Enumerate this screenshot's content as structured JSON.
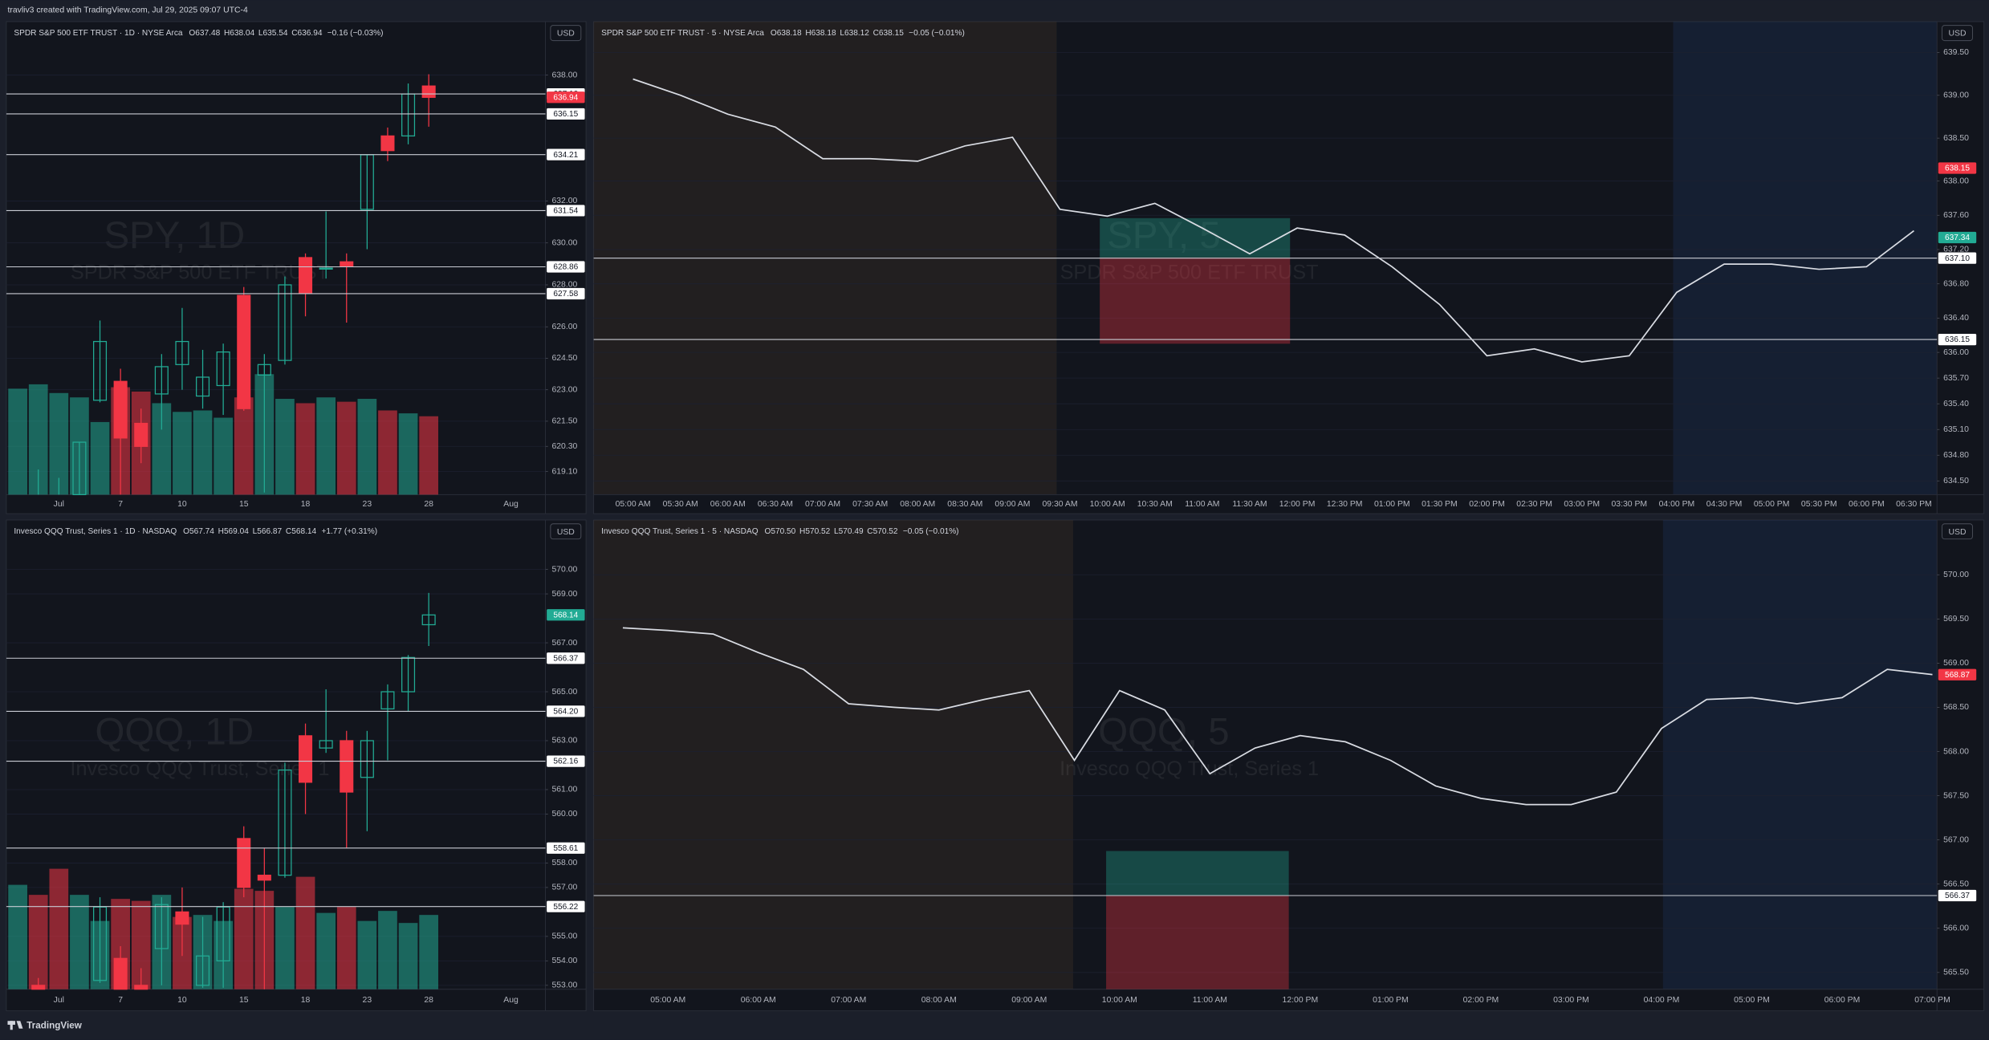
{
  "header": {
    "text": "travliv3 created with TradingView.com, Jul 29, 2025 09:07 UTC-4"
  },
  "footer": {
    "brand": "TradingView"
  },
  "chart_data": [
    {
      "type": "candlestick",
      "title": "SPDR S&P 500 ETF TRUST · 1D · NYSE Arca",
      "ohlc_legend": [
        {
          "key": "O",
          "value": "637.48"
        },
        {
          "key": "H",
          "value": "638.04"
        },
        {
          "key": "L",
          "value": "635.54"
        },
        {
          "key": "C",
          "value": "636.94"
        }
      ],
      "change": "−0.16 (−0.03%)",
      "legend_color": "#f23645",
      "watermark": "SPY, 1D",
      "watermark_subtitle": "SPDR S&P 500 ETF TRUST",
      "currency": "USD",
      "categories": [
        null,
        null,
        "Jul",
        null,
        null,
        "7",
        null,
        null,
        "10",
        null,
        null,
        "15",
        null,
        null,
        "18",
        null,
        null,
        "23",
        null,
        null,
        "28",
        null,
        null,
        null,
        "Aug"
      ],
      "open": [
        613.0,
        617.4,
        616.4,
        617.2,
        622.5,
        623.4,
        621.4,
        622.8,
        624.2,
        622.7,
        623.2,
        627.5,
        623.7,
        624.4,
        629.3,
        628.8,
        629.1,
        631.6,
        635.1,
        635.1,
        637.48,
        null,
        null,
        null,
        null
      ],
      "high": [
        616.4,
        619.2,
        618.8,
        620.5,
        626.3,
        624.0,
        622.1,
        624.7,
        626.9,
        624.9,
        625.2,
        627.9,
        624.7,
        628.4,
        629.5,
        631.5,
        629.5,
        634.2,
        635.5,
        637.6,
        638.04,
        null,
        null,
        null,
        null
      ],
      "low": [
        610.8,
        615.9,
        615.4,
        616.6,
        622.4,
        617.9,
        619.5,
        621.1,
        623.0,
        622.1,
        621.8,
        622.0,
        618.1,
        624.2,
        626.5,
        628.3,
        626.2,
        629.7,
        633.9,
        634.7,
        635.54,
        null,
        null,
        null,
        null
      ],
      "close": [
        614.9,
        617.9,
        617.7,
        620.5,
        625.3,
        620.7,
        620.3,
        624.1,
        625.3,
        623.6,
        624.8,
        622.1,
        624.2,
        628.0,
        627.6,
        628.8,
        628.9,
        634.2,
        634.4,
        637.1,
        636.94,
        null,
        null,
        null,
        null
      ],
      "volume": [
        73,
        76,
        70,
        67,
        50,
        74,
        71,
        63,
        57,
        58,
        53,
        67,
        83,
        66,
        63,
        67,
        64,
        66,
        58,
        56,
        54,
        null,
        null,
        null,
        null
      ],
      "up_color": "#22ab94",
      "down_color": "#f23645",
      "ylim": [
        618.0,
        640.55
      ],
      "yticks": [
        {
          "value": 638,
          "label": "638.00"
        },
        {
          "value": 632,
          "label": "632.00"
        },
        {
          "value": 630,
          "label": "630.00"
        },
        {
          "value": 628,
          "label": "628.00"
        },
        {
          "value": 626,
          "label": "626.00"
        },
        {
          "value": 624.5,
          "label": "624.50"
        },
        {
          "value": 623,
          "label": "623.00"
        },
        {
          "value": 621.5,
          "label": "621.50"
        },
        {
          "value": 620.3,
          "label": "620.30"
        },
        {
          "value": 619.1,
          "label": "619.10"
        }
      ],
      "markers": [
        {
          "value": 637.1,
          "label": "637.10",
          "style": "line"
        },
        {
          "value": 636.94,
          "label": "636.94",
          "style": "badge",
          "color": "#f23645"
        },
        {
          "value": 636.15,
          "label": "636.15",
          "style": "line"
        },
        {
          "value": 634.21,
          "label": "634.21",
          "style": "line"
        },
        {
          "value": 631.54,
          "label": "631.54",
          "style": "line"
        },
        {
          "value": 628.86,
          "label": "628.86",
          "style": "line"
        },
        {
          "value": 627.58,
          "label": "627.58",
          "style": "line"
        }
      ]
    },
    {
      "type": "line",
      "title": "SPDR S&P 500 ETF TRUST · 5 · NYSE Arca",
      "ohlc_legend": [
        {
          "key": "O",
          "value": "638.18"
        },
        {
          "key": "H",
          "value": "638.18"
        },
        {
          "key": "L",
          "value": "638.12"
        },
        {
          "key": "C",
          "value": "638.15"
        }
      ],
      "change": "−0.05 (−0.01%)",
      "legend_color": "#f23645",
      "watermark": "SPY, 5",
      "watermark_subtitle": "SPDR S&P 500 ETF TRUST",
      "currency": "USD",
      "categories": [
        "05:00 AM",
        "05:30 AM",
        "06:00 AM",
        "06:30 AM",
        "07:00 AM",
        "07:30 AM",
        "08:00 AM",
        "08:30 AM",
        "09:00 AM",
        "09:30 AM",
        "10:00 AM",
        "10:30 AM",
        "11:00 AM",
        "11:30 AM",
        "12:00 PM",
        "12:30 PM",
        "01:00 PM",
        "01:30 PM",
        "02:00 PM",
        "02:30 PM",
        "03:00 PM",
        "03:30 PM",
        "04:00 PM",
        "04:30 PM",
        "05:00 PM",
        "05:30 PM",
        "06:00 PM",
        "06:30 PM"
      ],
      "values": [
        639.19,
        639.0,
        638.78,
        638.63,
        638.26,
        638.26,
        638.23,
        638.41,
        638.51,
        637.67,
        637.59,
        637.74,
        637.45,
        637.15,
        637.45,
        637.37,
        637.0,
        636.56,
        635.96,
        636.04,
        635.89,
        635.96,
        636.7,
        637.03,
        637.03,
        636.97,
        637.0,
        637.42
      ],
      "color": "#d9dce3",
      "ylim": [
        634.34,
        639.86
      ],
      "yticks": [
        {
          "value": 639.5,
          "label": "639.50"
        },
        {
          "value": 639,
          "label": "639.00"
        },
        {
          "value": 638.5,
          "label": "638.50"
        },
        {
          "value": 638,
          "label": "638.00"
        },
        {
          "value": 637.6,
          "label": "637.60"
        },
        {
          "value": 637.2,
          "label": "637.20"
        },
        {
          "value": 636.8,
          "label": "636.80"
        },
        {
          "value": 636.4,
          "label": "636.40"
        },
        {
          "value": 636,
          "label": "636.00"
        },
        {
          "value": 635.7,
          "label": "635.70"
        },
        {
          "value": 635.4,
          "label": "635.40"
        },
        {
          "value": 635.1,
          "label": "635.10"
        },
        {
          "value": 634.8,
          "label": "634.80"
        },
        {
          "value": 634.5,
          "label": "634.50"
        }
      ],
      "markers": [
        {
          "value": 638.15,
          "label": "638.15",
          "style": "badge",
          "color": "#f23645"
        },
        {
          "value": 637.34,
          "label": "637.34",
          "style": "badge",
          "color": "#22ab94"
        },
        {
          "value": 637.1,
          "label": "637.10",
          "style": "line"
        },
        {
          "value": 636.15,
          "label": "636.15",
          "style": "line"
        }
      ]
    },
    {
      "type": "candlestick",
      "title": "Invesco QQQ Trust, Series 1 · 1D · NASDAQ",
      "ohlc_legend": [
        {
          "key": "O",
          "value": "567.74"
        },
        {
          "key": "H",
          "value": "569.04"
        },
        {
          "key": "L",
          "value": "566.87"
        },
        {
          "key": "C",
          "value": "568.14"
        }
      ],
      "change": "+1.77 (+0.31%)",
      "legend_color": "#22ab94",
      "watermark": "QQQ, 1D",
      "watermark_subtitle": "Invesco QQQ Trust, Series 1",
      "currency": "USD",
      "categories": [
        null,
        null,
        "Jul",
        null,
        null,
        "7",
        null,
        null,
        "10",
        null,
        null,
        "15",
        null,
        null,
        "18",
        null,
        null,
        "23",
        null,
        null,
        "28",
        null,
        null,
        null,
        "Aug"
      ],
      "open": [
        550.3,
        553.0,
        549.4,
        546.8,
        553.2,
        554.1,
        553.0,
        554.5,
        556.0,
        553.0,
        554.0,
        559.0,
        557.5,
        557.5,
        563.2,
        562.7,
        563.0,
        561.5,
        564.3,
        565.0,
        567.74,
        null,
        null,
        null,
        null
      ],
      "high": [
        552.0,
        553.3,
        550.3,
        551.0,
        556.6,
        554.6,
        553.7,
        556.6,
        557.0,
        555.8,
        556.4,
        559.5,
        558.6,
        562.1,
        563.7,
        565.1,
        563.4,
        563.4,
        565.3,
        566.5,
        569.04,
        null,
        null,
        null,
        null
      ],
      "low": [
        548.8,
        550.5,
        545.6,
        546.4,
        553.1,
        550.6,
        550.8,
        553.0,
        554.2,
        552.9,
        552.9,
        556.6,
        552.8,
        557.4,
        560.0,
        562.5,
        558.6,
        559.3,
        562.2,
        564.2,
        566.87,
        null,
        null,
        null,
        null
      ],
      "close": [
        551.6,
        551.6,
        547.0,
        550.8,
        556.2,
        552.0,
        552.3,
        556.3,
        555.5,
        554.2,
        556.2,
        557.0,
        557.3,
        561.8,
        561.3,
        563.0,
        560.9,
        563.0,
        565.0,
        566.4,
        568.14,
        null,
        null,
        null,
        null
      ],
      "volume": [
        52,
        47,
        60,
        47,
        34,
        45,
        44,
        47,
        36,
        37,
        34,
        50,
        49,
        41,
        56,
        38,
        41,
        34,
        39,
        33,
        37,
        null,
        null,
        null,
        null
      ],
      "up_color": "#22ab94",
      "down_color": "#f23645",
      "ylim": [
        552.84,
        572.02
      ],
      "yticks": [
        {
          "value": 570,
          "label": "570.00"
        },
        {
          "value": 569,
          "label": "569.00"
        },
        {
          "value": 567,
          "label": "567.00"
        },
        {
          "value": 565,
          "label": "565.00"
        },
        {
          "value": 563,
          "label": "563.00"
        },
        {
          "value": 561,
          "label": "561.00"
        },
        {
          "value": 560,
          "label": "560.00"
        },
        {
          "value": 558,
          "label": "558.00"
        },
        {
          "value": 557,
          "label": "557.00"
        },
        {
          "value": 555,
          "label": "555.00"
        },
        {
          "value": 554,
          "label": "554.00"
        },
        {
          "value": 553,
          "label": "553.00"
        }
      ],
      "markers": [
        {
          "value": 568.14,
          "label": "568.14",
          "style": "badge",
          "color": "#22ab94"
        },
        {
          "value": 566.37,
          "label": "566.37",
          "style": "line"
        },
        {
          "value": 564.2,
          "label": "564.20",
          "style": "line"
        },
        {
          "value": 562.16,
          "label": "562.16",
          "style": "line"
        },
        {
          "value": 558.61,
          "label": "558.61",
          "style": "line"
        },
        {
          "value": 556.22,
          "label": "556.22",
          "style": "line"
        }
      ]
    },
    {
      "type": "line",
      "title": "Invesco QQQ Trust, Series 1 · 5 · NASDAQ",
      "ohlc_legend": [
        {
          "key": "O",
          "value": "570.50"
        },
        {
          "key": "H",
          "value": "570.52"
        },
        {
          "key": "L",
          "value": "570.49"
        },
        {
          "key": "C",
          "value": "570.52"
        }
      ],
      "change": "−0.05 (−0.01%)",
      "legend_color": "#22ab94",
      "watermark": "QQQ, 5",
      "watermark_subtitle": "Invesco QQQ Trust, Series 1",
      "currency": "USD",
      "categories": [
        null,
        "05:00 AM",
        null,
        "06:00 AM",
        null,
        "07:00 AM",
        null,
        "08:00 AM",
        null,
        "09:00 AM",
        null,
        "10:00 AM",
        null,
        "11:00 AM",
        null,
        "12:00 PM",
        null,
        "01:00 PM",
        null,
        "02:00 PM",
        null,
        "03:00 PM",
        null,
        "04:00 PM",
        null,
        "05:00 PM",
        null,
        "06:00 PM",
        null,
        "07:00 PM"
      ],
      "values": [
        569.4,
        569.37,
        569.33,
        569.12,
        568.93,
        568.54,
        568.5,
        568.47,
        568.59,
        568.69,
        567.9,
        568.69,
        568.47,
        567.75,
        568.04,
        568.18,
        568.11,
        567.9,
        567.61,
        567.47,
        567.4,
        567.4,
        567.54,
        568.26,
        568.59,
        568.61,
        568.54,
        568.61,
        568.93,
        568.87
      ],
      "color": "#d9dce3",
      "ylim": [
        565.31,
        570.62
      ],
      "yticks": [
        {
          "value": 570,
          "label": "570.00"
        },
        {
          "value": 569.5,
          "label": "569.50"
        },
        {
          "value": 569,
          "label": "569.00"
        },
        {
          "value": 568.5,
          "label": "568.50"
        },
        {
          "value": 568,
          "label": "568.00"
        },
        {
          "value": 567.5,
          "label": "567.50"
        },
        {
          "value": 567,
          "label": "567.00"
        },
        {
          "value": 566.5,
          "label": "566.50"
        },
        {
          "value": 566,
          "label": "566.00"
        },
        {
          "value": 565.5,
          "label": "565.50"
        }
      ],
      "markers": [
        {
          "value": 568.87,
          "label": "568.87",
          "style": "badge",
          "color": "#f23645"
        },
        {
          "value": 566.37,
          "label": "566.37",
          "style": "line"
        }
      ]
    }
  ]
}
